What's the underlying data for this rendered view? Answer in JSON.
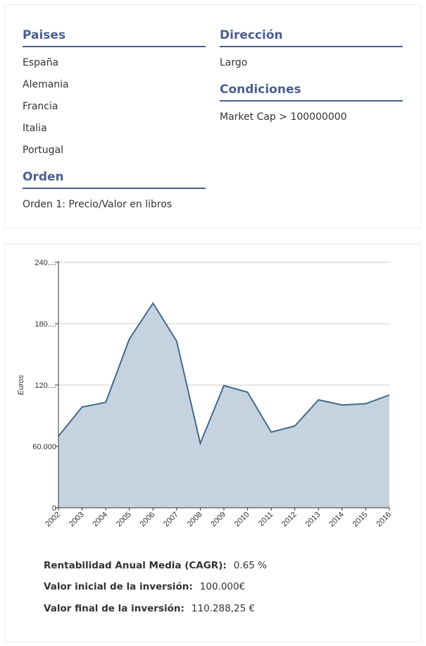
{
  "criteria": {
    "paises": {
      "title": "Paises",
      "items": [
        "España",
        "Alemania",
        "Francia",
        "Italia",
        "Portugal"
      ]
    },
    "orden": {
      "title": "Orden",
      "items": [
        "Orden 1: Precio/Valor en libros"
      ]
    },
    "direccion": {
      "title": "Dirección",
      "items": [
        "Largo"
      ]
    },
    "condiciones": {
      "title": "Condiciones",
      "items": [
        "Market Cap > 100000000"
      ]
    }
  },
  "chart_data": {
    "type": "area",
    "x": [
      "2002",
      "2003",
      "2004",
      "2005",
      "2006",
      "2007",
      "2008",
      "2009",
      "2010",
      "2011",
      "2012",
      "2013",
      "2014",
      "2015",
      "2016"
    ],
    "series": [
      {
        "values": [
          70000,
          98500,
          103000,
          165000,
          200000,
          163000,
          63000,
          119500,
          113000,
          74000,
          80000,
          105500,
          100500,
          101800,
          110288
        ]
      }
    ],
    "ylabel": "Euros",
    "ylim": [
      0,
      240000
    ],
    "y_ticks": [
      {
        "value": 0,
        "label": "0"
      },
      {
        "value": 60000,
        "label": "60.000"
      },
      {
        "value": 120000,
        "label": "120...."
      },
      {
        "value": 180000,
        "label": "180...."
      },
      {
        "value": 240000,
        "label": "240...."
      }
    ],
    "grid": true,
    "colors": {
      "line": "#3f6a8e",
      "fill": "#c6d3df",
      "grid": "#cccccc"
    }
  },
  "summary": {
    "cagr_label": "Rentabilidad Anual Media (CAGR):",
    "cagr_value": "0.65 %",
    "initial_label": "Valor inicial de la inversión:",
    "initial_value": "100.000€",
    "final_label": "Valor final de la inversión:",
    "final_value": "110.288,25 €"
  }
}
